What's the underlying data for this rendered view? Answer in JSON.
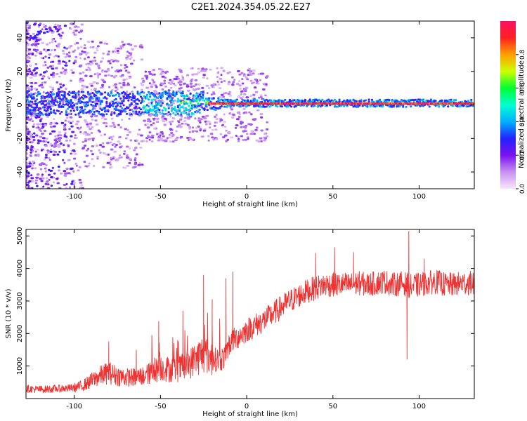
{
  "title": "C2E1.2024.354.05.22.E27",
  "colors": {
    "snr_line": "#ee3333",
    "axis": "#000000",
    "background": "#ffffff"
  },
  "chart_data": [
    {
      "type": "heatmap",
      "xlabel": "Height of straight line (km)",
      "ylabel": "Frequency (Hz)",
      "xlim": [
        -128,
        132
      ],
      "ylim": [
        -50,
        50
      ],
      "xticks": [
        -100,
        -50,
        0,
        50,
        100
      ],
      "yticks": [
        -40,
        -20,
        0,
        20,
        40
      ],
      "xtick_labels": [
        "-100",
        "-50",
        "0",
        "50",
        "100"
      ],
      "ytick_labels": [
        "-40",
        "-20",
        "0",
        "20",
        "40"
      ],
      "colorbar": {
        "label": "Normalized spectral amplitude",
        "range": [
          0,
          1
        ],
        "ticks": [
          0.0,
          0.2,
          0.4,
          0.6,
          0.8
        ],
        "tick_labels": [
          "0.0",
          "0.2",
          "0.4",
          "0.6",
          "0.8"
        ],
        "colormap": [
          "#f6e6fb",
          "#c890f0",
          "#7a12ef",
          "#2222ff",
          "#00b0ff",
          "#00ffd0",
          "#00ff30",
          "#ccff00",
          "#ffa000",
          "#ff2020",
          "#ff1060"
        ]
      },
      "description": "Spectral amplitude vs height: broad scatter at low heights narrowing to a sharp line near 0 Hz above about -20 km"
    },
    {
      "type": "line",
      "xlabel": "Height of straight line (km)",
      "ylabel": "SNR (10 * v/v)",
      "xlim": [
        -128,
        132
      ],
      "ylim": [
        0,
        5200
      ],
      "xticks": [
        -100,
        -50,
        0,
        50,
        100
      ],
      "yticks": [
        1000,
        2000,
        3000,
        4000,
        5000
      ],
      "xtick_labels": [
        "-100",
        "-50",
        "0",
        "50",
        "100"
      ],
      "ytick_labels": [
        "1000",
        "2000",
        "3000",
        "4000",
        "5000"
      ],
      "series": [
        {
          "x": [
            -128,
            -120,
            -110,
            -100,
            -95,
            -90,
            -85,
            -80,
            -75,
            -70,
            -65,
            -60,
            -55,
            -50,
            -45,
            -40,
            -35,
            -30,
            -25,
            -20,
            -15,
            -12,
            -10,
            -5,
            0,
            5,
            10,
            15,
            20,
            25,
            30,
            35,
            40,
            45,
            50,
            55,
            60,
            65,
            70,
            75,
            80,
            85,
            90,
            93,
            95,
            100,
            105,
            110,
            115,
            120,
            125,
            132
          ],
          "y": [
            300,
            280,
            300,
            330,
            400,
            550,
            700,
            800,
            700,
            650,
            650,
            700,
            800,
            950,
            900,
            900,
            1000,
            1200,
            1400,
            1200,
            1200,
            1300,
            1700,
            1900,
            2100,
            2250,
            2400,
            2600,
            2800,
            3000,
            3150,
            3300,
            3400,
            3500,
            3500,
            3500,
            3500,
            3550,
            3500,
            3550,
            3600,
            3500,
            3550,
            3500,
            3450,
            3500,
            3550,
            3600,
            3500,
            3500,
            3550,
            3550
          ],
          "spikes": [
            {
              "x": -80,
              "y": 1750
            },
            {
              "x": -64,
              "y": 1500
            },
            {
              "x": -55,
              "y": 1950
            },
            {
              "x": -51,
              "y": 2380
            },
            {
              "x": -40,
              "y": 1800
            },
            {
              "x": -37,
              "y": 2700
            },
            {
              "x": -25,
              "y": 3800
            },
            {
              "x": -20,
              "y": 3050
            },
            {
              "x": -12,
              "y": 3700
            },
            {
              "x": -8,
              "y": 3900
            },
            {
              "x": 40,
              "y": 4480
            },
            {
              "x": 51,
              "y": 4650
            },
            {
              "x": 62,
              "y": 4500
            },
            {
              "x": 94,
              "y": 5150
            },
            {
              "x": 93,
              "y": 1200
            },
            {
              "x": 103,
              "y": 4300
            }
          ]
        }
      ]
    }
  ]
}
